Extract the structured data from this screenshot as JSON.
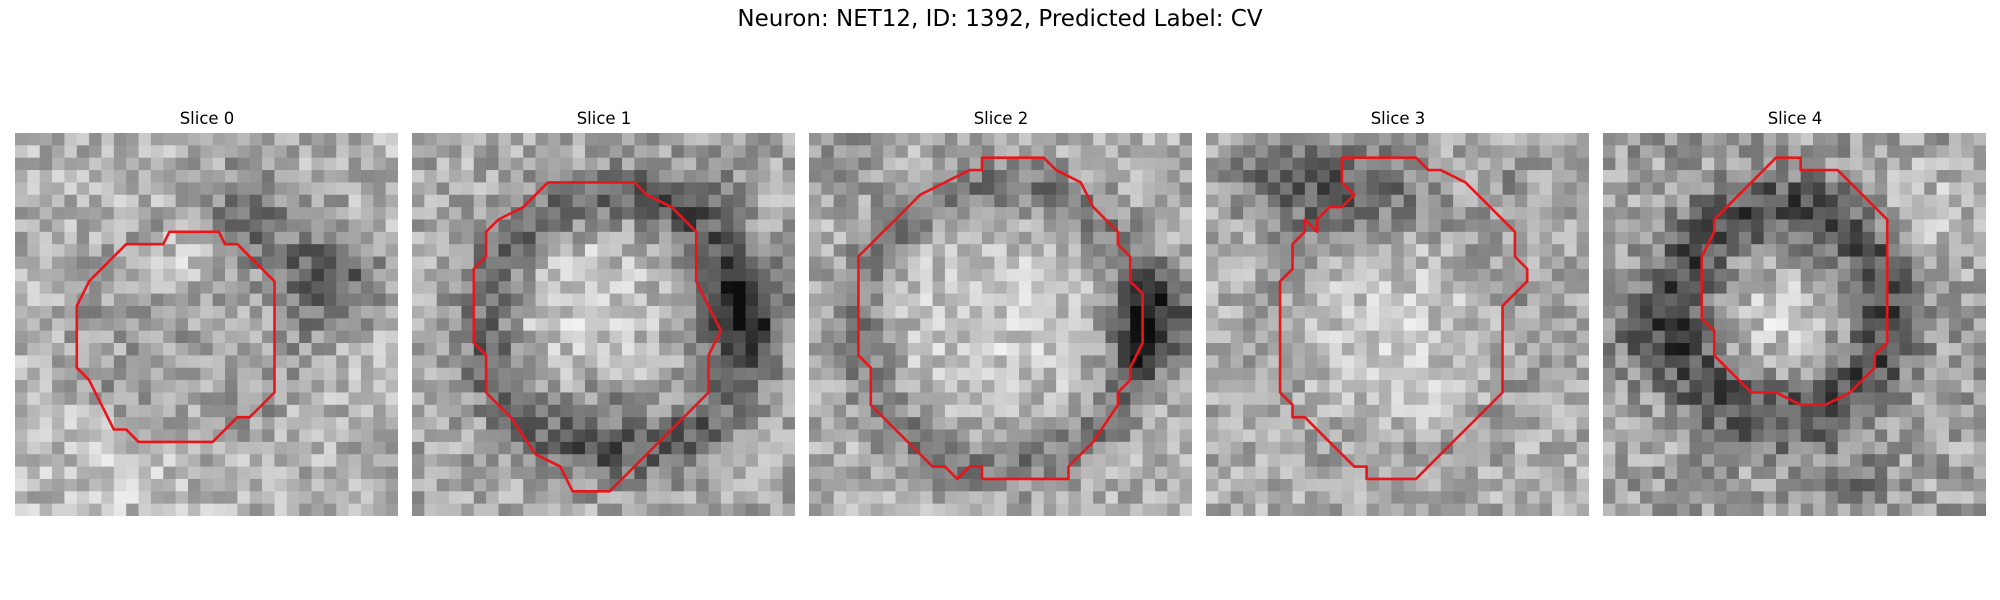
{
  "figure": {
    "title": "Neuron: NET12, ID: 1392, Predicted Label: CV"
  },
  "panels": [
    {
      "title": "Slice 0"
    },
    {
      "title": "Slice 1"
    },
    {
      "title": "Slice 2"
    },
    {
      "title": "Slice 3"
    },
    {
      "title": "Slice 4"
    }
  ],
  "colors": {
    "contour": "#e8161b",
    "colormap": "grayscale"
  }
}
